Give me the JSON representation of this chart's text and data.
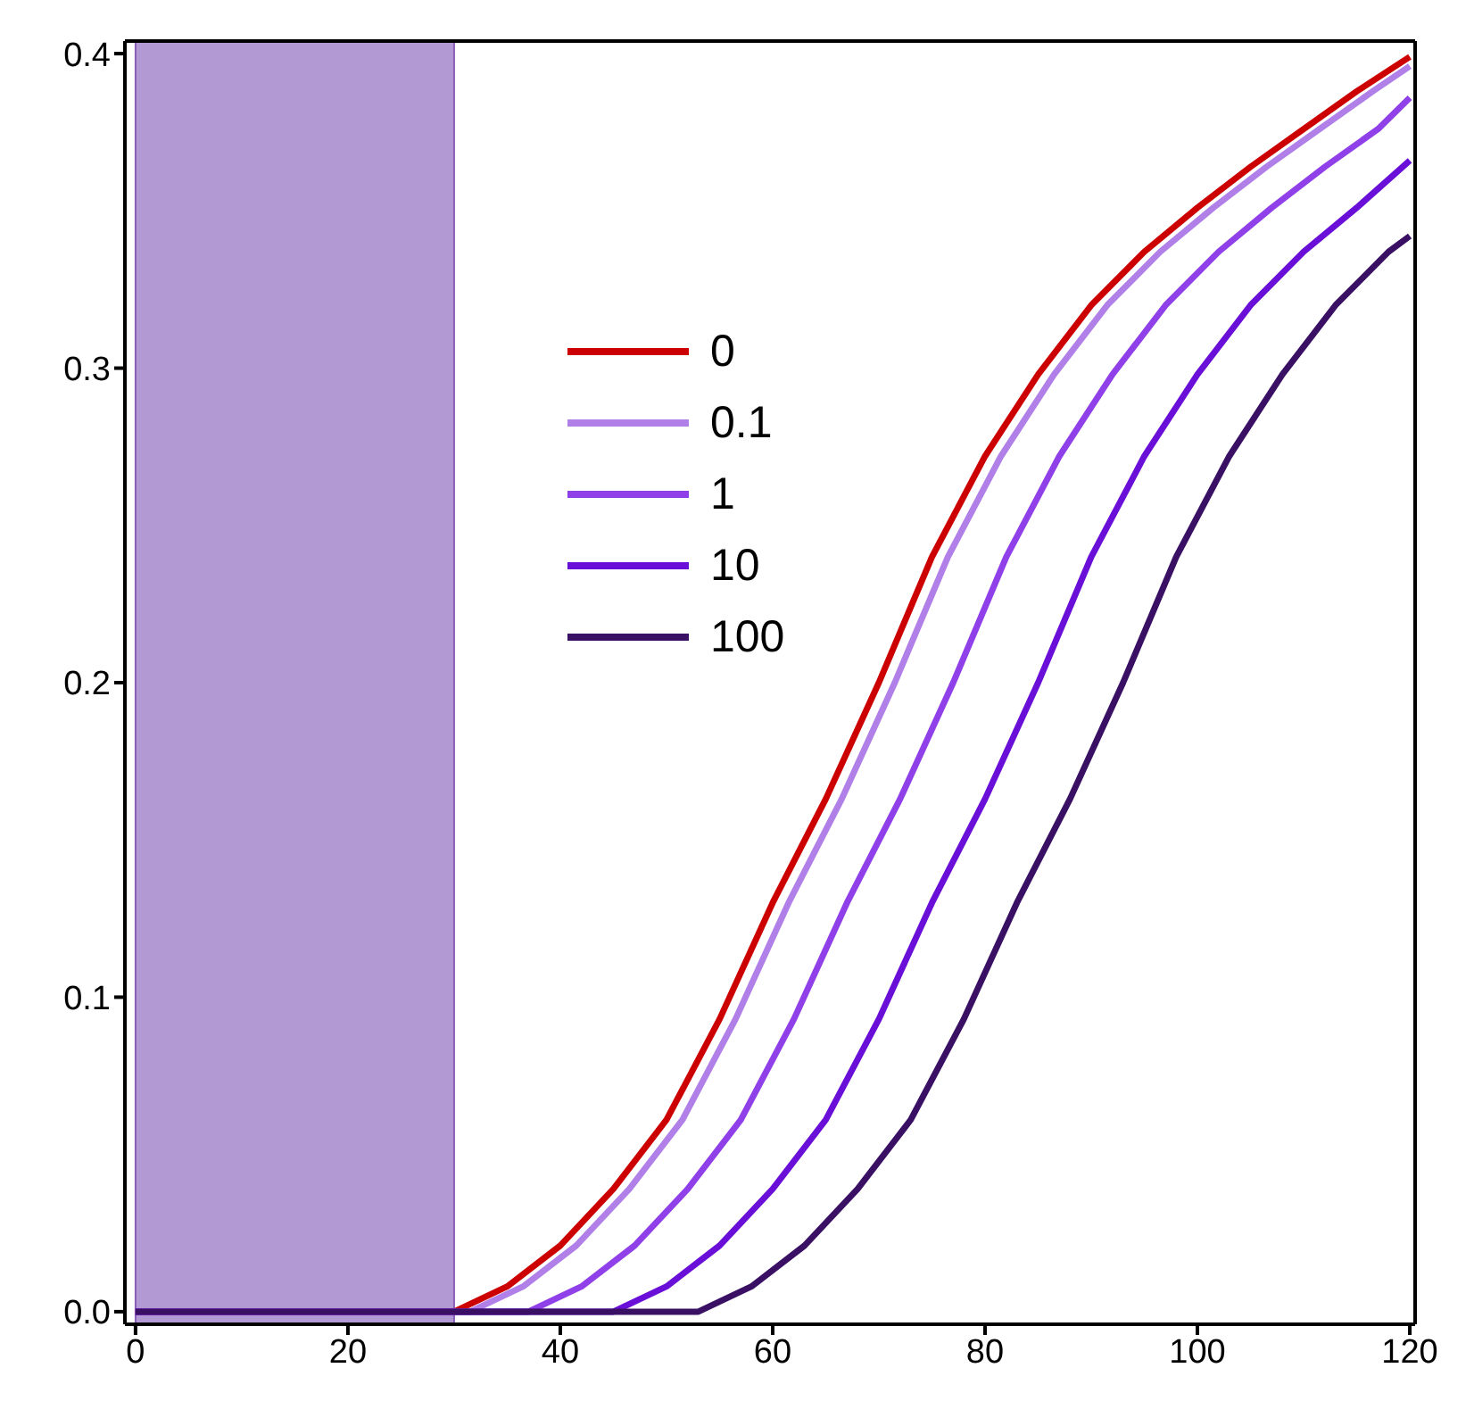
{
  "chart_data": {
    "type": "line",
    "xlim": [
      -1,
      120.5
    ],
    "ylim": [
      -0.004,
      0.404
    ],
    "xticks": [
      0,
      20,
      40,
      60,
      80,
      100,
      120
    ],
    "yticks": [
      {
        "value": 0,
        "label": "0.0"
      },
      {
        "value": 0.1,
        "label": "0.1"
      },
      {
        "value": 0.2,
        "label": "0.2"
      },
      {
        "value": 0.3,
        "label": "0.3"
      },
      {
        "value": 0.4,
        "label": "0.4"
      }
    ],
    "legend": "left",
    "marker": "none",
    "line_style": "solid",
    "bands": [
      {
        "axis": "x",
        "from": 0,
        "to": 30,
        "color": "#b399d4"
      }
    ],
    "series": [
      {
        "name": "0",
        "color": "#cc0000",
        "x": [
          0,
          30,
          35,
          40,
          45,
          50,
          55,
          60,
          65,
          70,
          75,
          80,
          85,
          90,
          95,
          100,
          105,
          110,
          115,
          120
        ],
        "values": [
          0,
          0,
          0.008,
          0.021,
          0.039,
          0.061,
          0.093,
          0.13,
          0.163,
          0.2,
          0.24,
          0.272,
          0.298,
          0.32,
          0.337,
          0.351,
          0.364,
          0.376,
          0.388,
          0.399
        ]
      },
      {
        "name": "0.1",
        "color": "#b07fe8",
        "x": [
          0,
          31.5,
          36.5,
          41.5,
          46.5,
          51.5,
          56.5,
          61.5,
          66.5,
          71.5,
          76.5,
          81.5,
          86.5,
          91.5,
          96.5,
          101.5,
          106.5,
          111.5,
          116.5,
          120
        ],
        "values": [
          0,
          0,
          0.008,
          0.021,
          0.039,
          0.061,
          0.093,
          0.13,
          0.163,
          0.2,
          0.24,
          0.272,
          0.298,
          0.32,
          0.337,
          0.351,
          0.364,
          0.376,
          0.388,
          0.396
        ]
      },
      {
        "name": "1",
        "color": "#9040e8",
        "x": [
          0,
          37,
          42,
          47,
          52,
          57,
          62,
          67,
          72,
          77,
          82,
          87,
          92,
          97,
          102,
          107,
          112,
          117,
          120
        ],
        "values": [
          0,
          0,
          0.008,
          0.021,
          0.039,
          0.061,
          0.093,
          0.13,
          0.163,
          0.2,
          0.24,
          0.272,
          0.298,
          0.32,
          0.337,
          0.351,
          0.364,
          0.376,
          0.386
        ]
      },
      {
        "name": "10",
        "color": "#6a0fd8",
        "x": [
          0,
          45,
          50,
          55,
          60,
          65,
          70,
          75,
          80,
          85,
          90,
          95,
          100,
          105,
          110,
          115,
          120
        ],
        "values": [
          0,
          0,
          0.008,
          0.021,
          0.039,
          0.061,
          0.093,
          0.13,
          0.163,
          0.2,
          0.24,
          0.272,
          0.298,
          0.32,
          0.337,
          0.351,
          0.366
        ]
      },
      {
        "name": "100",
        "color": "#3a1065",
        "x": [
          0,
          53,
          58,
          63,
          68,
          73,
          78,
          83,
          88,
          93,
          98,
          103,
          108,
          113,
          118,
          120
        ],
        "values": [
          0,
          0,
          0.008,
          0.021,
          0.039,
          0.061,
          0.093,
          0.13,
          0.163,
          0.2,
          0.24,
          0.272,
          0.298,
          0.32,
          0.337,
          0.342
        ]
      }
    ]
  }
}
